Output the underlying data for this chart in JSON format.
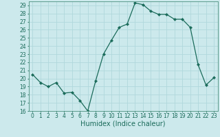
{
  "x": [
    0,
    1,
    2,
    3,
    4,
    5,
    6,
    7,
    8,
    9,
    10,
    11,
    12,
    13,
    14,
    15,
    16,
    17,
    18,
    19,
    20,
    21,
    22,
    23
  ],
  "y": [
    20.5,
    19.5,
    19.0,
    19.5,
    18.2,
    18.3,
    17.3,
    16.0,
    19.7,
    23.0,
    24.7,
    26.3,
    26.7,
    29.3,
    29.1,
    28.3,
    27.9,
    27.9,
    27.3,
    27.3,
    26.3,
    21.7,
    19.2,
    20.1
  ],
  "line_color": "#1a6b5a",
  "marker": "D",
  "marker_size": 2.2,
  "bg_color": "#cce9ec",
  "grid_color": "#b0d8dc",
  "xlabel": "Humidex (Indice chaleur)",
  "xlim": [
    -0.5,
    23.5
  ],
  "ylim": [
    16,
    29.5
  ],
  "yticks": [
    16,
    17,
    18,
    19,
    20,
    21,
    22,
    23,
    24,
    25,
    26,
    27,
    28,
    29
  ],
  "xticks": [
    0,
    1,
    2,
    3,
    4,
    5,
    6,
    7,
    8,
    9,
    10,
    11,
    12,
    13,
    14,
    15,
    16,
    17,
    18,
    19,
    20,
    21,
    22,
    23
  ],
  "tick_label_fontsize": 5.5,
  "xlabel_fontsize": 7.0,
  "axis_color": "#1a6b5a",
  "spine_color": "#5a9a8a"
}
